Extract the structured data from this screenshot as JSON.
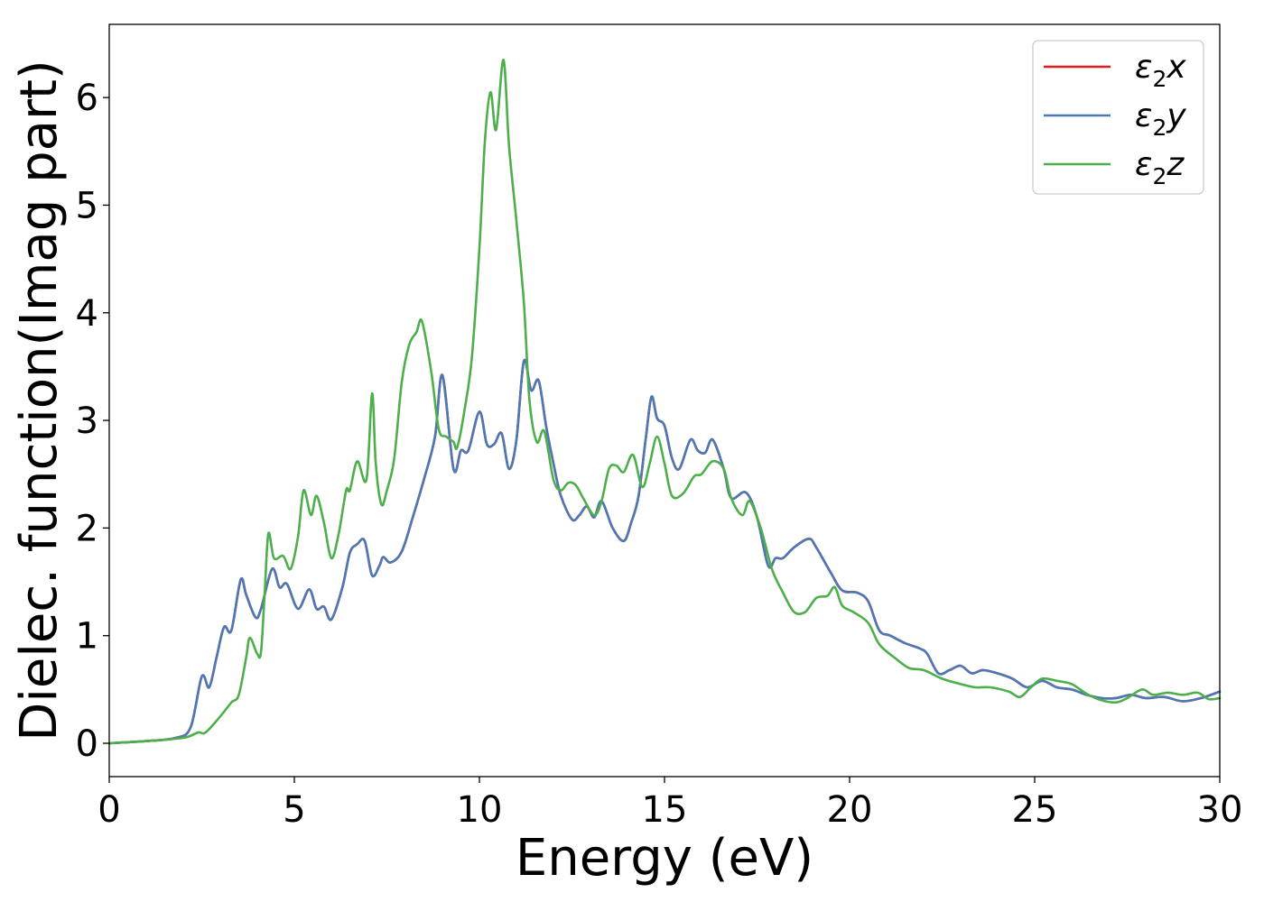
{
  "chart_data": {
    "type": "line",
    "xlabel": "Energy (eV)",
    "ylabel": "Dielec. function(Imag part)",
    "xlim": [
      0,
      30
    ],
    "ylim": [
      -0.31,
      6.68
    ],
    "x_ticks": [
      "0",
      "5",
      "10",
      "15",
      "20",
      "25",
      "30"
    ],
    "y_ticks": [
      "0",
      "1",
      "2",
      "3",
      "4",
      "5",
      "6"
    ],
    "grid": false,
    "legend_position": "top-right",
    "series": [
      {
        "name": "ε₂x",
        "legend_base": "ε",
        "legend_sub": "2",
        "legend_var": "x",
        "color": "#e41a1c",
        "same_as": "ε₂y"
      },
      {
        "name": "ε₂y",
        "legend_base": "ε",
        "legend_sub": "2",
        "legend_var": "y",
        "color": "#4a79b5",
        "points": [
          [
            0,
            0
          ],
          [
            1,
            0.02
          ],
          [
            1.8,
            0.05
          ],
          [
            2.2,
            0.15
          ],
          [
            2.5,
            0.62
          ],
          [
            2.7,
            0.52
          ],
          [
            2.9,
            0.8
          ],
          [
            3.1,
            1.08
          ],
          [
            3.3,
            1.05
          ],
          [
            3.55,
            1.52
          ],
          [
            3.7,
            1.38
          ],
          [
            3.95,
            1.17
          ],
          [
            4.1,
            1.25
          ],
          [
            4.4,
            1.62
          ],
          [
            4.6,
            1.45
          ],
          [
            4.8,
            1.48
          ],
          [
            5.1,
            1.25
          ],
          [
            5.4,
            1.43
          ],
          [
            5.6,
            1.25
          ],
          [
            5.8,
            1.27
          ],
          [
            6.0,
            1.15
          ],
          [
            6.3,
            1.45
          ],
          [
            6.5,
            1.77
          ],
          [
            6.7,
            1.85
          ],
          [
            6.9,
            1.88
          ],
          [
            7.1,
            1.56
          ],
          [
            7.3,
            1.65
          ],
          [
            7.4,
            1.73
          ],
          [
            7.6,
            1.68
          ],
          [
            7.9,
            1.78
          ],
          [
            8.2,
            2.1
          ],
          [
            8.5,
            2.45
          ],
          [
            8.8,
            2.85
          ],
          [
            9.0,
            3.42
          ],
          [
            9.3,
            2.55
          ],
          [
            9.5,
            2.72
          ],
          [
            9.7,
            2.72
          ],
          [
            10.0,
            3.08
          ],
          [
            10.2,
            2.78
          ],
          [
            10.4,
            2.78
          ],
          [
            10.6,
            2.88
          ],
          [
            10.8,
            2.55
          ],
          [
            11.0,
            2.82
          ],
          [
            11.2,
            3.55
          ],
          [
            11.4,
            3.28
          ],
          [
            11.6,
            3.37
          ],
          [
            11.8,
            2.95
          ],
          [
            12.0,
            2.6
          ],
          [
            12.2,
            2.3
          ],
          [
            12.5,
            2.08
          ],
          [
            12.7,
            2.12
          ],
          [
            12.9,
            2.2
          ],
          [
            13.1,
            2.1
          ],
          [
            13.3,
            2.25
          ],
          [
            13.6,
            2.0
          ],
          [
            13.9,
            1.88
          ],
          [
            14.1,
            2.05
          ],
          [
            14.3,
            2.3
          ],
          [
            14.5,
            2.85
          ],
          [
            14.65,
            3.22
          ],
          [
            14.8,
            3.02
          ],
          [
            15.0,
            2.95
          ],
          [
            15.2,
            2.65
          ],
          [
            15.4,
            2.55
          ],
          [
            15.7,
            2.82
          ],
          [
            15.9,
            2.72
          ],
          [
            16.1,
            2.7
          ],
          [
            16.3,
            2.82
          ],
          [
            16.6,
            2.55
          ],
          [
            16.8,
            2.28
          ],
          [
            17.2,
            2.33
          ],
          [
            17.5,
            2.1
          ],
          [
            17.8,
            1.65
          ],
          [
            18.0,
            1.72
          ],
          [
            18.2,
            1.72
          ],
          [
            18.5,
            1.82
          ],
          [
            18.9,
            1.9
          ],
          [
            19.1,
            1.82
          ],
          [
            19.5,
            1.58
          ],
          [
            19.8,
            1.42
          ],
          [
            20.2,
            1.4
          ],
          [
            20.5,
            1.32
          ],
          [
            20.8,
            1.05
          ],
          [
            21.1,
            1.0
          ],
          [
            21.5,
            0.93
          ],
          [
            21.9,
            0.88
          ],
          [
            22.1,
            0.83
          ],
          [
            22.4,
            0.65
          ],
          [
            22.7,
            0.68
          ],
          [
            23.0,
            0.72
          ],
          [
            23.3,
            0.65
          ],
          [
            23.6,
            0.68
          ],
          [
            24.0,
            0.65
          ],
          [
            24.4,
            0.6
          ],
          [
            24.8,
            0.52
          ],
          [
            25.2,
            0.58
          ],
          [
            25.6,
            0.52
          ],
          [
            26.0,
            0.5
          ],
          [
            26.4,
            0.45
          ],
          [
            26.8,
            0.42
          ],
          [
            27.2,
            0.42
          ],
          [
            27.6,
            0.45
          ],
          [
            28.0,
            0.42
          ],
          [
            28.5,
            0.43
          ],
          [
            29.0,
            0.39
          ],
          [
            29.5,
            0.42
          ],
          [
            30.0,
            0.48
          ]
        ]
      },
      {
        "name": "ε₂z",
        "legend_base": "ε",
        "legend_sub": "2",
        "legend_var": "z",
        "color": "#4daf4a",
        "points": [
          [
            0,
            0
          ],
          [
            1,
            0.02
          ],
          [
            2,
            0.05
          ],
          [
            2.4,
            0.1
          ],
          [
            2.6,
            0.1
          ],
          [
            3.0,
            0.25
          ],
          [
            3.3,
            0.38
          ],
          [
            3.5,
            0.45
          ],
          [
            3.7,
            0.8
          ],
          [
            3.8,
            0.98
          ],
          [
            4.0,
            0.83
          ],
          [
            4.1,
            0.85
          ],
          [
            4.2,
            1.4
          ],
          [
            4.3,
            1.95
          ],
          [
            4.45,
            1.72
          ],
          [
            4.7,
            1.74
          ],
          [
            4.9,
            1.62
          ],
          [
            5.1,
            1.92
          ],
          [
            5.25,
            2.35
          ],
          [
            5.45,
            2.12
          ],
          [
            5.6,
            2.3
          ],
          [
            5.8,
            2.05
          ],
          [
            6.0,
            1.72
          ],
          [
            6.2,
            1.95
          ],
          [
            6.4,
            2.35
          ],
          [
            6.5,
            2.35
          ],
          [
            6.7,
            2.62
          ],
          [
            6.95,
            2.45
          ],
          [
            7.1,
            3.25
          ],
          [
            7.2,
            2.6
          ],
          [
            7.35,
            2.22
          ],
          [
            7.5,
            2.35
          ],
          [
            7.7,
            2.65
          ],
          [
            7.9,
            3.35
          ],
          [
            8.1,
            3.7
          ],
          [
            8.3,
            3.82
          ],
          [
            8.45,
            3.92
          ],
          [
            8.7,
            3.45
          ],
          [
            8.9,
            2.92
          ],
          [
            9.1,
            2.85
          ],
          [
            9.3,
            2.8
          ],
          [
            9.4,
            2.75
          ],
          [
            9.6,
            3.1
          ],
          [
            9.8,
            3.6
          ],
          [
            10.0,
            4.6
          ],
          [
            10.15,
            5.6
          ],
          [
            10.3,
            6.05
          ],
          [
            10.45,
            5.7
          ],
          [
            10.65,
            6.35
          ],
          [
            10.8,
            5.55
          ],
          [
            11.0,
            4.85
          ],
          [
            11.2,
            4.1
          ],
          [
            11.35,
            3.2
          ],
          [
            11.55,
            2.8
          ],
          [
            11.75,
            2.9
          ],
          [
            12.0,
            2.45
          ],
          [
            12.2,
            2.35
          ],
          [
            12.4,
            2.42
          ],
          [
            12.6,
            2.4
          ],
          [
            12.8,
            2.28
          ],
          [
            13.1,
            2.12
          ],
          [
            13.3,
            2.25
          ],
          [
            13.5,
            2.55
          ],
          [
            13.7,
            2.58
          ],
          [
            13.9,
            2.52
          ],
          [
            14.15,
            2.68
          ],
          [
            14.4,
            2.38
          ],
          [
            14.6,
            2.6
          ],
          [
            14.8,
            2.85
          ],
          [
            15.0,
            2.6
          ],
          [
            15.2,
            2.3
          ],
          [
            15.5,
            2.32
          ],
          [
            15.8,
            2.48
          ],
          [
            16.0,
            2.5
          ],
          [
            16.3,
            2.62
          ],
          [
            16.6,
            2.55
          ],
          [
            16.8,
            2.28
          ],
          [
            17.1,
            2.12
          ],
          [
            17.3,
            2.25
          ],
          [
            17.6,
            2.0
          ],
          [
            17.9,
            1.62
          ],
          [
            18.2,
            1.4
          ],
          [
            18.5,
            1.22
          ],
          [
            18.8,
            1.22
          ],
          [
            19.1,
            1.35
          ],
          [
            19.4,
            1.37
          ],
          [
            19.6,
            1.45
          ],
          [
            19.8,
            1.28
          ],
          [
            20.1,
            1.22
          ],
          [
            20.5,
            1.12
          ],
          [
            20.8,
            0.92
          ],
          [
            21.2,
            0.8
          ],
          [
            21.6,
            0.7
          ],
          [
            22.0,
            0.68
          ],
          [
            22.5,
            0.6
          ],
          [
            23.0,
            0.55
          ],
          [
            23.4,
            0.52
          ],
          [
            23.8,
            0.52
          ],
          [
            24.3,
            0.48
          ],
          [
            24.6,
            0.43
          ],
          [
            24.9,
            0.52
          ],
          [
            25.2,
            0.6
          ],
          [
            25.6,
            0.58
          ],
          [
            26.0,
            0.55
          ],
          [
            26.4,
            0.46
          ],
          [
            26.8,
            0.4
          ],
          [
            27.2,
            0.38
          ],
          [
            27.5,
            0.42
          ],
          [
            27.9,
            0.5
          ],
          [
            28.2,
            0.45
          ],
          [
            28.6,
            0.47
          ],
          [
            29.0,
            0.45
          ],
          [
            29.4,
            0.47
          ],
          [
            29.7,
            0.41
          ],
          [
            30.0,
            0.42
          ]
        ]
      }
    ]
  }
}
